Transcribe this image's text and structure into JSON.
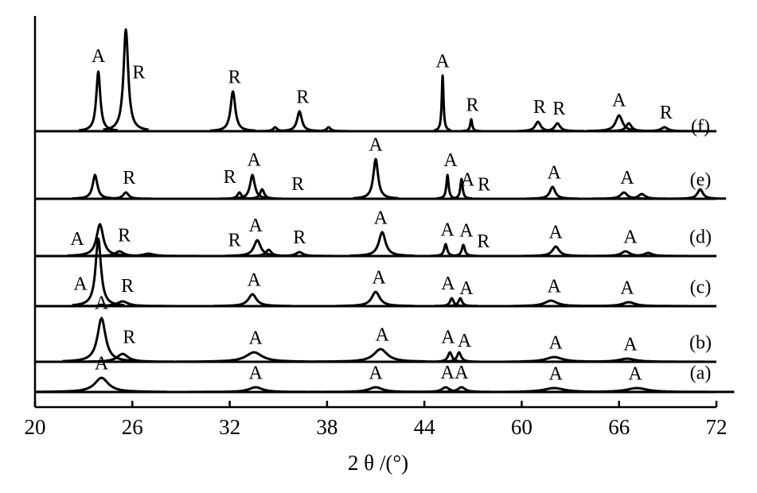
{
  "chart_data": {
    "type": "xrd-stack",
    "x_label": "2 θ /(°)",
    "xlim": [
      20,
      72
    ],
    "xticks": [
      20,
      26,
      32,
      38,
      44,
      60,
      66,
      72
    ],
    "color": "#000000",
    "series": [
      {
        "name": "(a)",
        "x": [
          24.1,
          33.6,
          41.0,
          47.5,
          50.1,
          62.0,
          67.1
        ],
        "values": [
          18,
          6,
          6,
          6,
          6,
          5,
          5
        ],
        "fwhm": [
          1.0,
          1.0,
          1.0,
          1.5,
          1.5,
          1.5,
          1.5
        ],
        "annotations": [
          {
            "x": 24.1,
            "text": "A"
          },
          {
            "x": 33.6,
            "text": "A"
          },
          {
            "x": 41.0,
            "text": "A"
          },
          {
            "x": 47.8,
            "text": "A"
          },
          {
            "x": 50.1,
            "text": "A"
          },
          {
            "x": 62.1,
            "text": "A"
          },
          {
            "x": 67.0,
            "text": "A"
          }
        ]
      },
      {
        "name": "(b)",
        "x": [
          24.1,
          25.4,
          33.5,
          41.3,
          48.2,
          49.7,
          62.0,
          66.5
        ],
        "values": [
          55,
          10,
          12,
          16,
          12,
          12,
          6,
          4
        ],
        "fwhm": [
          0.6,
          0.8,
          1.2,
          1.0,
          0.8,
          0.8,
          1.2,
          1.2
        ],
        "annotations": [
          {
            "x": 24.1,
            "text": "A"
          },
          {
            "x": 25.8,
            "text": "R"
          },
          {
            "x": 33.6,
            "text": "A"
          },
          {
            "x": 41.4,
            "text": "A"
          },
          {
            "x": 47.9,
            "text": "A"
          },
          {
            "x": 50.6,
            "text": "A"
          },
          {
            "x": 62.1,
            "text": "A"
          },
          {
            "x": 66.7,
            "text": "A"
          }
        ]
      },
      {
        "name": "(c)",
        "x": [
          23.9,
          25.4,
          33.4,
          41.0,
          48.5,
          49.9,
          61.8,
          66.6
        ],
        "values": [
          85,
          6,
          15,
          18,
          10,
          10,
          7,
          5
        ],
        "fwhm": [
          0.4,
          0.8,
          0.6,
          0.6,
          0.7,
          0.7,
          0.9,
          0.9
        ],
        "annotations": [
          {
            "x": 22.8,
            "text": "A"
          },
          {
            "x": 25.7,
            "text": "R"
          },
          {
            "x": 33.5,
            "text": "A"
          },
          {
            "x": 41.2,
            "text": "A"
          },
          {
            "x": 47.9,
            "text": "A"
          },
          {
            "x": 50.9,
            "text": "A"
          },
          {
            "x": 62.0,
            "text": "A"
          },
          {
            "x": 66.5,
            "text": "A"
          }
        ]
      },
      {
        "name": "(d)",
        "x": [
          24.0,
          25.2,
          27.0,
          33.7,
          34.4,
          36.3,
          41.4,
          47.5,
          50.4,
          62.1,
          66.4,
          67.8
        ],
        "values": [
          40,
          6,
          3,
          20,
          8,
          5,
          30,
          15,
          14,
          12,
          6,
          4
        ],
        "fwhm": [
          0.5,
          0.6,
          0.8,
          0.5,
          0.4,
          0.5,
          0.5,
          0.6,
          0.6,
          0.5,
          0.6,
          0.6
        ],
        "annotations": [
          {
            "x": 22.6,
            "text": "A"
          },
          {
            "x": 25.5,
            "text": "R"
          },
          {
            "x": 32.3,
            "text": "R"
          },
          {
            "x": 33.6,
            "text": "A"
          },
          {
            "x": 36.3,
            "text": "R"
          },
          {
            "x": 41.3,
            "text": "A"
          },
          {
            "x": 47.8,
            "text": "A"
          },
          {
            "x": 50.9,
            "text": "A"
          },
          {
            "x": 53.7,
            "text": "R"
          },
          {
            "x": 62.1,
            "text": "A"
          },
          {
            "x": 66.7,
            "text": "A"
          }
        ]
      },
      {
        "name": "(e)",
        "x": [
          23.7,
          25.6,
          32.6,
          33.4,
          34.0,
          41.0,
          47.8,
          50.1,
          61.9,
          66.3,
          67.4,
          71.0
        ],
        "values": [
          30,
          8,
          8,
          30,
          12,
          50,
          30,
          25,
          15,
          8,
          6,
          12
        ],
        "fwhm": [
          0.35,
          0.4,
          0.3,
          0.35,
          0.3,
          0.35,
          0.45,
          0.45,
          0.4,
          0.5,
          0.5,
          0.4
        ],
        "annotations": [
          {
            "x": 25.8,
            "text": "R"
          },
          {
            "x": 32.0,
            "text": "R"
          },
          {
            "x": 33.5,
            "text": "A"
          },
          {
            "x": 36.2,
            "text": "R"
          },
          {
            "x": 41.0,
            "text": "A"
          },
          {
            "x": 48.3,
            "text": "A"
          },
          {
            "x": 51.1,
            "text": "A"
          },
          {
            "x": 53.8,
            "text": "R"
          },
          {
            "x": 62.0,
            "text": "A"
          },
          {
            "x": 66.5,
            "text": "A"
          }
        ]
      },
      {
        "name": "(f)",
        "x": [
          23.9,
          25.6,
          32.2,
          34.8,
          36.3,
          38.1,
          47.0,
          51.7,
          61.0,
          62.2,
          66.0,
          66.6,
          68.8
        ],
        "values": [
          75,
          128,
          50,
          5,
          25,
          5,
          70,
          15,
          12,
          10,
          20,
          10,
          5
        ],
        "fwhm": [
          0.3,
          0.35,
          0.35,
          0.3,
          0.35,
          0.3,
          0.35,
          0.4,
          0.4,
          0.4,
          0.5,
          0.4,
          0.5
        ],
        "annotations": [
          {
            "x": 23.9,
            "text": "A"
          },
          {
            "x": 26.4,
            "text": "R"
          },
          {
            "x": 32.3,
            "text": "R"
          },
          {
            "x": 36.5,
            "text": "R"
          },
          {
            "x": 47.0,
            "text": "A"
          },
          {
            "x": 51.9,
            "text": "R"
          },
          {
            "x": 61.1,
            "text": "R"
          },
          {
            "x": 62.3,
            "text": "R"
          },
          {
            "x": 66.0,
            "text": "A"
          },
          {
            "x": 68.9,
            "text": "R"
          }
        ]
      }
    ]
  }
}
